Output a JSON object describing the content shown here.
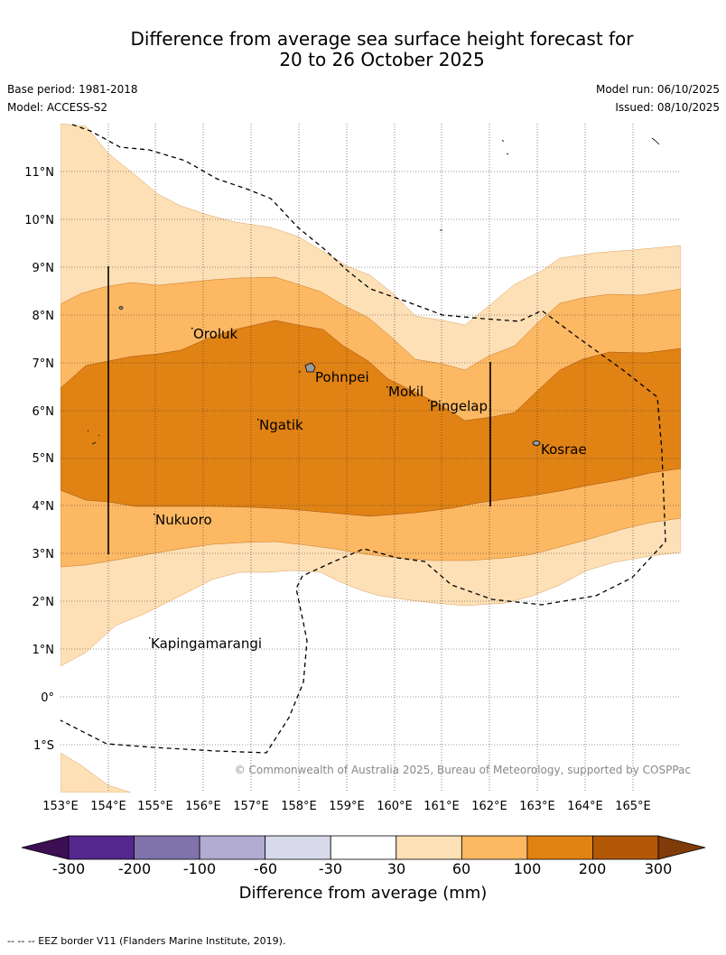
{
  "title": {
    "line1": "Difference from average sea surface height forecast for",
    "line2": "20 to 26 October 2025"
  },
  "meta": {
    "base_period": "Base period: 1981-2018",
    "model": "Model: ACCESS-S2",
    "model_run": "Model run: 06/10/2025",
    "issued": "Issued: 08/10/2025"
  },
  "map": {
    "lat_labels": [
      "11°N",
      "10°N",
      "9°N",
      "8°N",
      "7°N",
      "6°N",
      "5°N",
      "4°N",
      "3°N",
      "2°N",
      "1°N",
      "0°",
      "1°S"
    ],
    "lon_labels": [
      "153°E",
      "154°E",
      "155°E",
      "156°E",
      "157°E",
      "158°E",
      "159°E",
      "160°E",
      "161°E",
      "162°E",
      "163°E",
      "164°E",
      "165°E"
    ],
    "places": {
      "oroluk": "Oroluk",
      "pohnpei": "Pohnpei",
      "mokil": "Mokil",
      "pingelap": "Pingelap",
      "ngatik": "Ngatik",
      "kosrae": "Kosrae",
      "nukuoro": "Nukuoro",
      "kapingamarangi": "Kapingamarangi"
    },
    "copyright": "© Commonwealth of Australia 2025, Bureau of Meteorology, supported by COSPPac"
  },
  "colorbar": {
    "ticks": [
      "-300",
      "-200",
      "-100",
      "-60",
      "-30",
      "30",
      "60",
      "100",
      "200",
      "300"
    ],
    "label": "Difference from average (mm)",
    "colors": [
      "#3c0e54",
      "#54278f",
      "#8073ac",
      "#b2abd2",
      "#d8daeb",
      "#ffffff",
      "#fee0b6",
      "#fdb863",
      "#e08214",
      "#b35806",
      "#7f3b08"
    ]
  },
  "footnote": "--  --  -- EEZ border V11 (Flanders Marine Institute, 2019)."
}
